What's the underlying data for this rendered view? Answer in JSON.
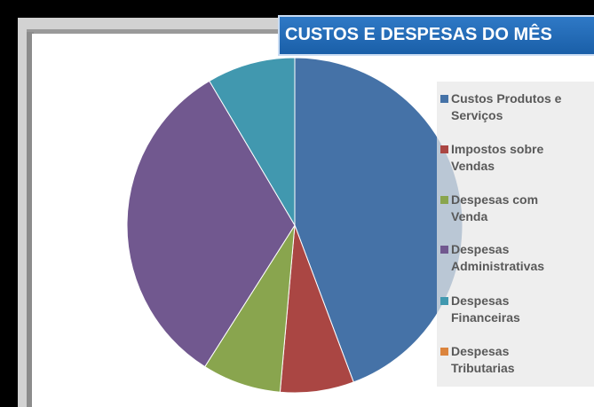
{
  "title": "CUSTOS E DESPESAS  DO MÊS",
  "chart_data": {
    "type": "pie",
    "categories": [
      "Custos Produtos e Serviços",
      "Impostos sobre Vendas",
      "Despesas com Venda",
      "Despesas Administrativas",
      "Despesas Financeiras",
      "Despesas Tributarias"
    ],
    "values": [
      44.3,
      7.1,
      7.6,
      32.5,
      8.5,
      0
    ],
    "colors": [
      "#4572a7",
      "#aa4643",
      "#89a54e",
      "#71588f",
      "#4198af",
      "#db843d"
    ],
    "title": "CUSTOS E DESPESAS  DO MÊS",
    "legend": "right"
  },
  "legend": [
    {
      "line1": "Custos Produtos e",
      "line2": "Serviços",
      "color": "#4572a7",
      "icon": "square-swatch"
    },
    {
      "line1": "Impostos sobre",
      "line2": "Vendas",
      "color": "#aa4643",
      "icon": "square-swatch"
    },
    {
      "line1": "Despesas com",
      "line2": "Venda",
      "color": "#89a54e",
      "icon": "square-swatch"
    },
    {
      "line1": "Despesas",
      "line2": "Administrativas",
      "color": "#71588f",
      "icon": "square-swatch"
    },
    {
      "line1": "Despesas",
      "line2": "Financeiras",
      "color": "#4198af",
      "icon": "square-swatch"
    },
    {
      "line1": "Despesas",
      "line2": "Tributarias",
      "color": "#db843d",
      "icon": "square-swatch"
    }
  ]
}
